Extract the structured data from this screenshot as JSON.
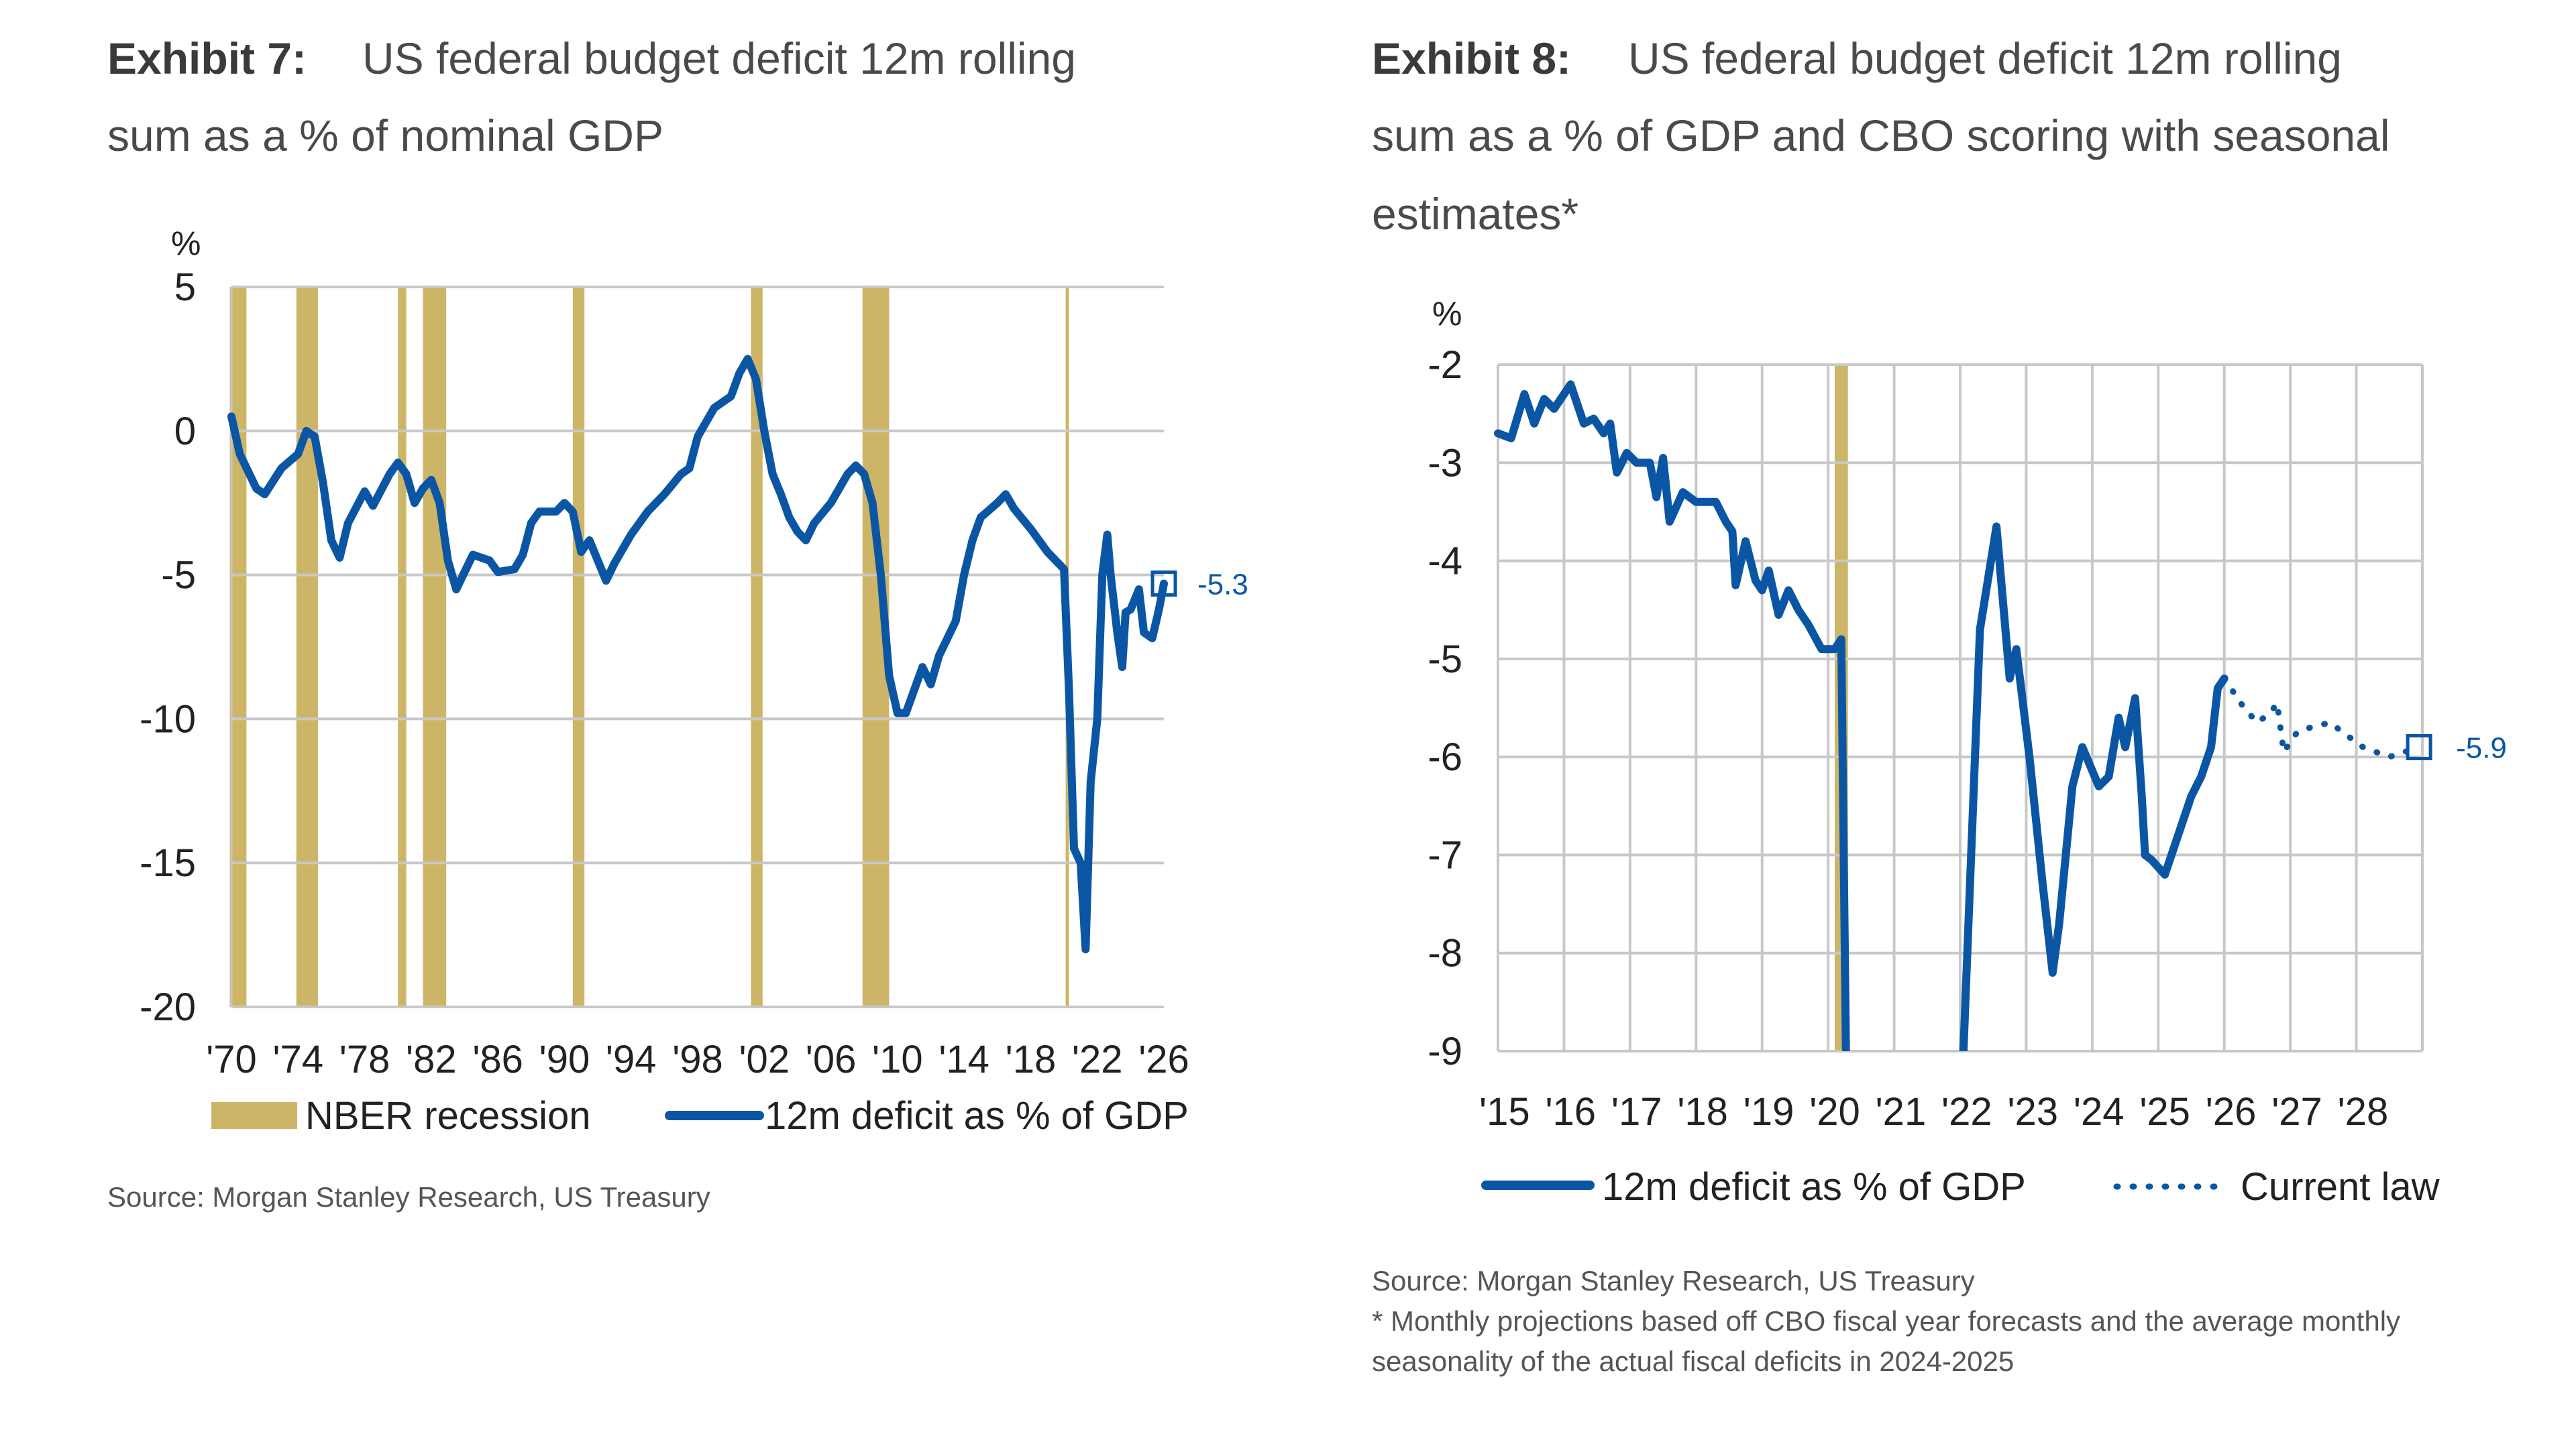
{
  "colors": {
    "series": "#0b56a4",
    "recession": "#cdb567",
    "grid": "#c8c8c8"
  },
  "chart_data": [
    {
      "type": "line",
      "exhibit": "Exhibit 7:",
      "title_line1": "US federal budget deficit 12m rolling",
      "title_line2": "sum as a % of nominal GDP",
      "ylabel": "%",
      "ylim": [
        -20,
        5
      ],
      "yticks": [
        "5",
        "0",
        "-5",
        "-10",
        "-15",
        "-20"
      ],
      "ytick_values": [
        5,
        0,
        -5,
        -10,
        -15,
        -20
      ],
      "xlim": [
        1970,
        2026
      ],
      "xticks": [
        "'70",
        "'74",
        "'78",
        "'82",
        "'86",
        "'90",
        "'94",
        "'98",
        "'02",
        "'06",
        "'10",
        "'14",
        "'18",
        "'22",
        "'26"
      ],
      "xtick_values": [
        1970,
        1974,
        1978,
        1982,
        1986,
        1990,
        1994,
        1998,
        2002,
        2006,
        2010,
        2014,
        2018,
        2022,
        2026
      ],
      "grid": "horizontal",
      "legend": [
        "NBER recession",
        "12m deficit as % of GDP"
      ],
      "legend_placement": "bottom",
      "end_label": "-5.3",
      "recessions": [
        [
          1969.9,
          1970.9
        ],
        [
          1973.9,
          1975.2
        ],
        [
          1980.0,
          1980.5
        ],
        [
          1981.5,
          1982.9
        ],
        [
          1990.5,
          1991.2
        ],
        [
          2001.2,
          2001.9
        ],
        [
          2007.9,
          2009.5
        ],
        [
          2020.1,
          2020.3
        ]
      ],
      "series": [
        {
          "name": "12m deficit as % of GDP",
          "x": [
            1970,
            1970.5,
            1971.5,
            1972,
            1973,
            1974,
            1974.5,
            1975,
            1975.5,
            1976,
            1976.5,
            1977,
            1978,
            1978.5,
            1979.5,
            1980,
            1980.5,
            1981,
            1981.5,
            1982,
            1982.5,
            1983,
            1983.5,
            1984.5,
            1985.5,
            1986,
            1987,
            1987.5,
            1988,
            1988.5,
            1989.5,
            1990,
            1990.5,
            1991,
            1991.5,
            1992,
            1992.5,
            1993,
            1994,
            1995,
            1996,
            1997,
            1997.5,
            1998,
            1999,
            2000,
            2000.5,
            2001,
            2001.5,
            2002,
            2002.5,
            2003,
            2003.5,
            2004,
            2004.5,
            2005,
            2006,
            2006.5,
            2007,
            2007.5,
            2008,
            2008.5,
            2009,
            2009.5,
            2010,
            2010.5,
            2011,
            2011.5,
            2012,
            2012.5,
            2013,
            2013.5,
            2014,
            2014.5,
            2015,
            2016,
            2016.5,
            2017,
            2018,
            2019,
            2020,
            2020.3,
            2020.6,
            2021,
            2021.3,
            2021.6,
            2022,
            2022.3,
            2022.6,
            2022.8,
            2023.2,
            2023.5,
            2023.7,
            2024,
            2024.5,
            2024.8,
            2025.3,
            2025.7,
            2026
          ],
          "y": [
            0.5,
            -0.8,
            -2,
            -2.2,
            -1.3,
            -0.8,
            0,
            -0.2,
            -1.8,
            -3.8,
            -4.4,
            -3.2,
            -2.1,
            -2.6,
            -1.5,
            -1.1,
            -1.5,
            -2.5,
            -2,
            -1.7,
            -2.5,
            -4.5,
            -5.5,
            -4.3,
            -4.5,
            -4.9,
            -4.8,
            -4.3,
            -3.2,
            -2.8,
            -2.8,
            -2.5,
            -2.8,
            -4.2,
            -3.8,
            -4.5,
            -5.2,
            -4.6,
            -3.6,
            -2.8,
            -2.2,
            -1.5,
            -1.3,
            -0.2,
            0.8,
            1.2,
            2.0,
            2.5,
            1.8,
            0,
            -1.5,
            -2.2,
            -3,
            -3.5,
            -3.8,
            -3.2,
            -2.5,
            -2,
            -1.5,
            -1.2,
            -1.5,
            -2.5,
            -5,
            -8.5,
            -9.8,
            -9.8,
            -9,
            -8.2,
            -8.8,
            -7.8,
            -7.2,
            -6.6,
            -5,
            -3.8,
            -3,
            -2.5,
            -2.2,
            -2.7,
            -3.4,
            -4.2,
            -4.8,
            -9,
            -14.5,
            -15,
            -18,
            -12.2,
            -10,
            -5,
            -3.6,
            -5,
            -7,
            -8.2,
            -6.3,
            -6.2,
            -5.5,
            -7,
            -7.2,
            -6.2,
            -5.3
          ]
        }
      ],
      "source": "Source: Morgan Stanley Research, US Treasury"
    },
    {
      "type": "line",
      "exhibit": "Exhibit 8:",
      "title_line1": "US federal budget deficit 12m rolling",
      "title_line2": "sum as a % of GDP and CBO scoring with seasonal",
      "title_line3": "estimates*",
      "ylabel": "%",
      "ylim": [
        -9,
        -2
      ],
      "yticks": [
        "-2",
        "-3",
        "-4",
        "-5",
        "-6",
        "-7",
        "-8",
        "-9"
      ],
      "ytick_values": [
        -2,
        -3,
        -4,
        -5,
        -6,
        -7,
        -8,
        -9
      ],
      "xlim": [
        2015,
        2029
      ],
      "xticks": [
        "'15",
        "'16",
        "'17",
        "'18",
        "'19",
        "'20",
        "'21",
        "'22",
        "'23",
        "'24",
        "'25",
        "'26",
        "'27",
        "'28"
      ],
      "xtick_values": [
        2015,
        2016,
        2017,
        2018,
        2019,
        2020,
        2021,
        2022,
        2023,
        2024,
        2025,
        2026,
        2027,
        2028
      ],
      "grid": "both",
      "legend": [
        "12m deficit as % of GDP",
        "Current law"
      ],
      "legend_placement": "bottom",
      "end_label": "-5.9",
      "recessions": [
        [
          2020.1,
          2020.3
        ]
      ],
      "series": [
        {
          "name": "12m deficit as % of GDP",
          "style": "solid",
          "x": [
            2015,
            2015.2,
            2015.4,
            2015.55,
            2015.7,
            2015.85,
            2016.1,
            2016.3,
            2016.45,
            2016.6,
            2016.7,
            2016.8,
            2016.95,
            2017.1,
            2017.3,
            2017.4,
            2017.5,
            2017.6,
            2017.8,
            2018,
            2018.3,
            2018.45,
            2018.55,
            2018.6,
            2018.75,
            2018.9,
            2019,
            2019.1,
            2019.25,
            2019.4,
            2019.55,
            2019.7,
            2019.9,
            2020.1,
            2020.2,
            2020.27
          ],
          "y": [
            -2.7,
            -2.75,
            -2.3,
            -2.6,
            -2.35,
            -2.45,
            -2.2,
            -2.6,
            -2.55,
            -2.7,
            -2.6,
            -3.1,
            -2.9,
            -3,
            -3,
            -3.35,
            -2.95,
            -3.6,
            -3.3,
            -3.4,
            -3.4,
            -3.6,
            -3.7,
            -4.25,
            -3.8,
            -4.2,
            -4.3,
            -4.1,
            -4.55,
            -4.3,
            -4.5,
            -4.65,
            -4.9,
            -4.9,
            -4.8,
            -9
          ]
        },
        {
          "name": "12m deficit as % of GDP",
          "style": "solid",
          "x": [
            2022.05,
            2022.3,
            2022.55,
            2022.75,
            2022.85,
            2023.05,
            2023.25,
            2023.4,
            2023.5,
            2023.7,
            2023.85,
            2024.1,
            2024.25,
            2024.4,
            2024.5,
            2024.65,
            2024.75,
            2024.8,
            2024.9,
            2025.1,
            2025.3,
            2025.5,
            2025.65,
            2025.8,
            2025.9,
            2026
          ],
          "y": [
            -9,
            -4.7,
            -3.65,
            -5.2,
            -4.9,
            -6,
            -7.3,
            -8.2,
            -7.7,
            -6.3,
            -5.9,
            -6.3,
            -6.2,
            -5.6,
            -5.9,
            -5.4,
            -6.4,
            -7,
            -7.05,
            -7.2,
            -6.8,
            -6.4,
            -6.2,
            -5.9,
            -5.3,
            -5.2
          ]
        },
        {
          "name": "Current law",
          "style": "dotted",
          "x": [
            2026,
            2026.3,
            2026.5,
            2026.7,
            2026.8,
            2026.9,
            2027.1,
            2027.3,
            2027.6,
            2027.9,
            2028.1,
            2028.5,
            2028.95
          ],
          "y": [
            -5.2,
            -5.5,
            -5.65,
            -5.55,
            -5.45,
            -5.95,
            -5.75,
            -5.7,
            -5.65,
            -5.8,
            -5.9,
            -6.0,
            -5.9
          ]
        }
      ],
      "source": "Source: Morgan Stanley Research, US Treasury",
      "note_line1": "* Monthly projections based off CBO fiscal year forecasts and the average monthly",
      "note_line2": "seasonality of the actual fiscal deficits in 2024-2025"
    }
  ]
}
